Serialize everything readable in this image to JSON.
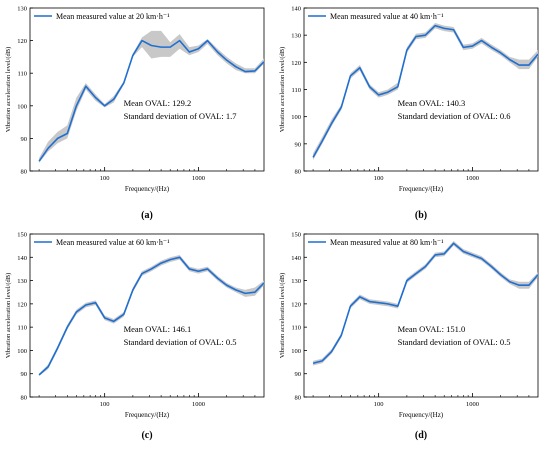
{
  "chart_data": [
    {
      "type": "line",
      "panel_label": "(a)",
      "xlabel": "Frequency/(Hz)",
      "ylabel": "Vibration acceleration level/(dB)",
      "x_scale": "log",
      "xlim": [
        16,
        5000
      ],
      "ylim": [
        80,
        130
      ],
      "yticks": [
        80,
        90,
        100,
        110,
        120,
        130
      ],
      "xticks": [
        100,
        1000
      ],
      "xtick_labels": [
        "100",
        "1000"
      ],
      "legend": "top-left",
      "color": "#1f6fd1",
      "band_color": "#c8c8c8",
      "series": [
        {
          "name": "Mean measured value at 20 km·h⁻¹",
          "x": [
            20,
            25,
            31.5,
            40,
            50,
            63,
            80,
            100,
            125,
            160,
            200,
            250,
            315,
            400,
            500,
            630,
            800,
            1000,
            1250,
            1600,
            2000,
            2500,
            3150,
            4000,
            5000
          ],
          "values": [
            83,
            87,
            90,
            91.5,
            100,
            106,
            102.5,
            100,
            102,
            107,
            115.5,
            120,
            118.5,
            118,
            118,
            120,
            116.5,
            117.5,
            120,
            116.5,
            114,
            112,
            110.5,
            110.7,
            113.5
          ],
          "upper": [
            84,
            89,
            92,
            94,
            102.5,
            107,
            103.5,
            100.5,
            103,
            107.5,
            116,
            121,
            123,
            123,
            119.5,
            122,
            118,
            118.5,
            120.5,
            117.5,
            115,
            113,
            111.5,
            111.5,
            114.5
          ],
          "lower": [
            82.5,
            86,
            88.5,
            90,
            98.5,
            105,
            101.5,
            99.5,
            101,
            106.5,
            115,
            118,
            114.5,
            115,
            115,
            117.5,
            115.5,
            116.5,
            119,
            115.5,
            113,
            111,
            110,
            110,
            113
          ]
        }
      ],
      "annotations": [
        "Mean OVAL: 129.2",
        "Standard deviation of OVAL: 1.7"
      ]
    },
    {
      "type": "line",
      "panel_label": "(b)",
      "xlabel": "Frequency/(Hz)",
      "ylabel": "Vibration acceleration level/(dB)",
      "x_scale": "log",
      "xlim": [
        16,
        5000
      ],
      "ylim": [
        80,
        140
      ],
      "yticks": [
        80,
        90,
        100,
        110,
        120,
        130,
        140
      ],
      "xticks": [
        100,
        1000
      ],
      "xtick_labels": [
        "100",
        "1000"
      ],
      "legend": "top-left",
      "color": "#1f6fd1",
      "band_color": "#c8c8c8",
      "series": [
        {
          "name": "Mean measured value at 40 km·h⁻¹",
          "x": [
            20,
            25,
            31.5,
            40,
            50,
            63,
            80,
            100,
            125,
            160,
            200,
            250,
            315,
            400,
            500,
            630,
            800,
            1000,
            1250,
            1600,
            2000,
            2500,
            3150,
            4000,
            5000
          ],
          "values": [
            85,
            91,
            97.5,
            103.5,
            115,
            118,
            111,
            108,
            109,
            111,
            124.5,
            129.5,
            130,
            133.5,
            132.5,
            132,
            125.5,
            126,
            128,
            125.5,
            123.5,
            121,
            119,
            119,
            123
          ],
          "upper": [
            86.5,
            92.5,
            99,
            104.5,
            116,
            119,
            112,
            109,
            110,
            112.5,
            125.5,
            130.5,
            131,
            134.5,
            133.5,
            133,
            126.5,
            127,
            129,
            126.5,
            124.5,
            122,
            121,
            121,
            124.5
          ],
          "lower": [
            84,
            90,
            96.5,
            102.5,
            114,
            117,
            110,
            107,
            108,
            110,
            123.5,
            128.5,
            129,
            132.5,
            131.5,
            131,
            124.5,
            125,
            127,
            124.5,
            122.5,
            120,
            117.5,
            117.5,
            122
          ]
        }
      ],
      "annotations": [
        "Mean OVAL: 140.3",
        "Standard deviation of OVAL: 0.6"
      ]
    },
    {
      "type": "line",
      "panel_label": "(c)",
      "xlabel": "Frequency/(Hz)",
      "ylabel": "Vibration acceleration level/(dB)",
      "x_scale": "log",
      "xlim": [
        16,
        5000
      ],
      "ylim": [
        80,
        150
      ],
      "yticks": [
        80,
        90,
        100,
        110,
        120,
        130,
        140,
        150
      ],
      "xticks": [
        100,
        1000
      ],
      "xtick_labels": [
        "100",
        "1000"
      ],
      "legend": "top-left",
      "color": "#1f6fd1",
      "band_color": "#c8c8c8",
      "series": [
        {
          "name": "Mean measured value at 60 km·h⁻¹",
          "x": [
            20,
            25,
            31.5,
            40,
            50,
            63,
            80,
            100,
            125,
            160,
            200,
            250,
            315,
            400,
            500,
            630,
            800,
            1000,
            1250,
            1600,
            2000,
            2500,
            3150,
            4000,
            5000
          ],
          "values": [
            89.5,
            93,
            101,
            110,
            116.5,
            119.5,
            120.5,
            114,
            112.5,
            115.5,
            126,
            133,
            135,
            137.5,
            139,
            140,
            135,
            134,
            135,
            131,
            128,
            126,
            124.5,
            125,
            129
          ],
          "upper": [
            90,
            94,
            102,
            111,
            117.5,
            120.5,
            121.5,
            115,
            113.5,
            116.5,
            127,
            134,
            136,
            138.5,
            140,
            141,
            136,
            135,
            136,
            132,
            129,
            127,
            126,
            127,
            130
          ],
          "lower": [
            89,
            92,
            100,
            109,
            115.5,
            118.5,
            119.5,
            113,
            111.5,
            114.5,
            125,
            132,
            134,
            136.5,
            138,
            139,
            134,
            133,
            134,
            130,
            127,
            125,
            123,
            123.5,
            128
          ]
        }
      ],
      "annotations": [
        "Mean OVAL: 146.1",
        "Standard deviation of OVAL: 0.5"
      ]
    },
    {
      "type": "line",
      "panel_label": "(d)",
      "xlabel": "Frequency/(Hz)",
      "ylabel": "Vibration acceleration level/(dB)",
      "x_scale": "log",
      "xlim": [
        16,
        5000
      ],
      "ylim": [
        80,
        150
      ],
      "yticks": [
        80,
        90,
        100,
        110,
        120,
        130,
        140,
        150
      ],
      "xticks": [
        100,
        1000
      ],
      "xtick_labels": [
        "100",
        "1000"
      ],
      "legend": "top-left",
      "color": "#1f6fd1",
      "band_color": "#c8c8c8",
      "series": [
        {
          "name": "Mean measured value at 80 km·h⁻¹",
          "x": [
            20,
            25,
            31.5,
            40,
            50,
            63,
            80,
            100,
            125,
            160,
            200,
            250,
            315,
            400,
            500,
            630,
            800,
            1000,
            1250,
            1600,
            2000,
            2500,
            3150,
            4000,
            5000
          ],
          "values": [
            94.5,
            95.5,
            99.5,
            106.5,
            119,
            123,
            121,
            120.5,
            120,
            119,
            130,
            133,
            136,
            141,
            141.5,
            146,
            142.5,
            141,
            139.5,
            136,
            132.5,
            129.5,
            128,
            128,
            132.5
          ],
          "upper": [
            95.5,
            96.5,
            100.5,
            107.5,
            120,
            124,
            122,
            121.5,
            121,
            120,
            131,
            134,
            137,
            142,
            142.5,
            147,
            143.5,
            142,
            140.5,
            137,
            133.5,
            130.5,
            129.5,
            129.5,
            133.5
          ],
          "lower": [
            93.5,
            94.5,
            98.5,
            105.5,
            118,
            122,
            120,
            119.5,
            119,
            118,
            129,
            132,
            135,
            140,
            140.5,
            145,
            141.5,
            140,
            138.5,
            135,
            131.5,
            128.5,
            126.5,
            126.5,
            131.5
          ]
        }
      ],
      "annotations": [
        "Mean OVAL: 151.0",
        "Standard deviation of OVAL: 0.5"
      ]
    }
  ]
}
